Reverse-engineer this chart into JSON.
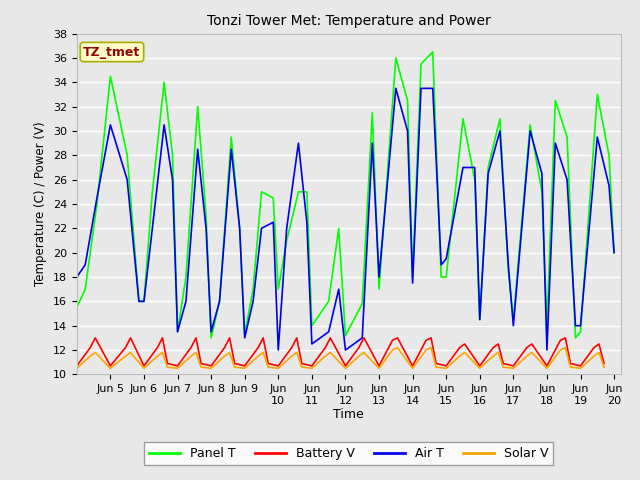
{
  "title": "Tonzi Tower Met: Temperature and Power",
  "xlabel": "Time",
  "ylabel": "Temperature (C) / Power (V)",
  "ylim": [
    10,
    38
  ],
  "yticks": [
    10,
    12,
    14,
    16,
    18,
    20,
    22,
    24,
    26,
    28,
    30,
    32,
    34,
    36,
    38
  ],
  "annotation_text": "TZ_tmet",
  "annotation_bg": "#FFFFCC",
  "annotation_border": "#AAAA00",
  "annotation_text_color": "#990000",
  "bg_color": "#E8E8E8",
  "grid_color": "#FFFFFF",
  "legend_labels": [
    "Panel T",
    "Battery V",
    "Air T",
    "Solar V"
  ],
  "legend_colors": [
    "#00FF00",
    "#FF0000",
    "#0000EE",
    "#FFA500"
  ],
  "xlim": [
    4.0,
    20.2
  ],
  "line_width": 1.2,
  "panel_t_x": [
    4.0,
    4.25,
    4.6,
    5.0,
    5.5,
    5.85,
    6.0,
    6.25,
    6.6,
    6.85,
    7.0,
    7.25,
    7.6,
    7.85,
    8.0,
    8.25,
    8.6,
    8.85,
    9.0,
    9.25,
    9.5,
    9.85,
    10.0,
    10.25,
    10.6,
    10.85,
    11.0,
    11.5,
    11.8,
    12.0,
    12.5,
    12.8,
    13.0,
    13.5,
    13.85,
    14.0,
    14.25,
    14.6,
    14.85,
    15.0,
    15.5,
    15.85,
    16.0,
    16.25,
    16.6,
    16.85,
    17.0,
    17.5,
    17.85,
    18.0,
    18.25,
    18.6,
    18.85,
    19.0,
    19.5,
    19.85,
    20.0
  ],
  "panel_t": [
    15.5,
    17,
    24,
    34.5,
    28,
    16,
    16.0,
    25,
    34.0,
    28,
    13.5,
    18,
    32,
    23,
    13.0,
    16,
    29.5,
    22,
    13.3,
    17,
    25,
    24.5,
    17,
    21,
    25,
    25.0,
    14.0,
    16.0,
    22,
    13.2,
    15.8,
    31.5,
    17.0,
    36.0,
    32.5,
    18.0,
    35.5,
    36.5,
    18.0,
    18.0,
    31.0,
    26.0,
    14.5,
    27.0,
    31.0,
    18.5,
    14.5,
    30.5,
    25.0,
    14.0,
    32.5,
    29.5,
    13.0,
    13.5,
    33.0,
    28.0,
    20.0
  ],
  "air_t_x": [
    4.0,
    4.25,
    4.6,
    5.0,
    5.5,
    5.85,
    6.0,
    6.25,
    6.6,
    6.85,
    7.0,
    7.25,
    7.6,
    7.85,
    8.0,
    8.25,
    8.6,
    8.85,
    9.0,
    9.25,
    9.5,
    9.85,
    10.0,
    10.25,
    10.6,
    10.85,
    11.0,
    11.5,
    11.8,
    12.0,
    12.5,
    12.8,
    13.0,
    13.5,
    13.85,
    14.0,
    14.25,
    14.6,
    14.85,
    15.0,
    15.5,
    15.85,
    16.0,
    16.25,
    16.6,
    16.85,
    17.0,
    17.5,
    17.85,
    18.0,
    18.25,
    18.6,
    18.85,
    19.0,
    19.5,
    19.85,
    20.0
  ],
  "air_t": [
    18.0,
    19,
    24.5,
    30.5,
    26,
    16,
    16.0,
    22,
    30.5,
    26,
    13.5,
    16,
    28.5,
    22,
    13.5,
    16,
    28.5,
    22,
    13.0,
    16,
    22,
    22.5,
    12.0,
    22,
    29.0,
    22.5,
    12.5,
    13.5,
    17,
    12.0,
    13.0,
    29.0,
    18.0,
    33.5,
    30.0,
    17.5,
    33.5,
    33.5,
    19.0,
    19.5,
    27.0,
    27.0,
    14.5,
    26.5,
    30.0,
    19.0,
    14.0,
    30.0,
    26.5,
    12.0,
    29.0,
    26.0,
    14.0,
    14.0,
    29.5,
    25.5,
    20.0
  ],
  "battery_v_x": [
    4.0,
    4.4,
    4.55,
    5.0,
    5.45,
    5.6,
    6.0,
    6.4,
    6.55,
    6.7,
    7.0,
    7.4,
    7.55,
    7.7,
    8.0,
    8.4,
    8.55,
    8.7,
    9.0,
    9.4,
    9.55,
    9.7,
    10.0,
    10.4,
    10.55,
    10.7,
    11.0,
    11.4,
    11.55,
    12.0,
    12.4,
    12.55,
    13.0,
    13.4,
    13.55,
    14.0,
    14.4,
    14.55,
    14.7,
    15.0,
    15.4,
    15.55,
    16.0,
    16.4,
    16.55,
    16.7,
    17.0,
    17.4,
    17.55,
    18.0,
    18.4,
    18.55,
    18.7,
    19.0,
    19.4,
    19.55,
    19.7
  ],
  "battery_v": [
    10.7,
    12.2,
    13.0,
    10.7,
    12.2,
    13.0,
    10.7,
    12.2,
    13.0,
    10.9,
    10.7,
    12.2,
    13.0,
    10.9,
    10.7,
    12.2,
    13.0,
    10.9,
    10.7,
    12.2,
    13.0,
    10.9,
    10.7,
    12.2,
    13.0,
    10.9,
    10.7,
    12.2,
    13.0,
    10.7,
    12.2,
    13.0,
    10.7,
    12.8,
    13.0,
    10.7,
    12.8,
    13.0,
    10.9,
    10.7,
    12.2,
    12.5,
    10.7,
    12.2,
    12.5,
    10.9,
    10.7,
    12.2,
    12.5,
    10.7,
    12.8,
    13.0,
    10.9,
    10.7,
    12.2,
    12.5,
    10.9
  ],
  "solar_v_x": [
    4.0,
    4.4,
    4.55,
    5.0,
    5.45,
    5.6,
    6.0,
    6.4,
    6.55,
    6.7,
    7.0,
    7.4,
    7.55,
    7.7,
    8.0,
    8.4,
    8.55,
    8.7,
    9.0,
    9.4,
    9.55,
    9.7,
    10.0,
    10.4,
    10.55,
    10.7,
    11.0,
    11.4,
    11.55,
    12.0,
    12.4,
    12.55,
    13.0,
    13.4,
    13.55,
    14.0,
    14.4,
    14.55,
    14.7,
    15.0,
    15.4,
    15.55,
    16.0,
    16.4,
    16.55,
    16.7,
    17.0,
    17.4,
    17.55,
    18.0,
    18.4,
    18.55,
    18.7,
    19.0,
    19.4,
    19.55,
    19.7
  ],
  "solar_v": [
    10.5,
    11.5,
    11.8,
    10.5,
    11.5,
    11.8,
    10.5,
    11.5,
    11.8,
    10.6,
    10.5,
    11.5,
    11.8,
    10.6,
    10.5,
    11.5,
    11.8,
    10.6,
    10.5,
    11.5,
    11.8,
    10.6,
    10.5,
    11.5,
    11.8,
    10.6,
    10.5,
    11.5,
    11.8,
    10.5,
    11.5,
    11.8,
    10.5,
    12.0,
    12.2,
    10.5,
    12.0,
    12.2,
    10.6,
    10.5,
    11.5,
    11.8,
    10.5,
    11.5,
    11.8,
    10.6,
    10.5,
    11.5,
    11.8,
    10.5,
    12.0,
    12.2,
    10.6,
    10.5,
    11.5,
    11.8,
    10.6
  ]
}
